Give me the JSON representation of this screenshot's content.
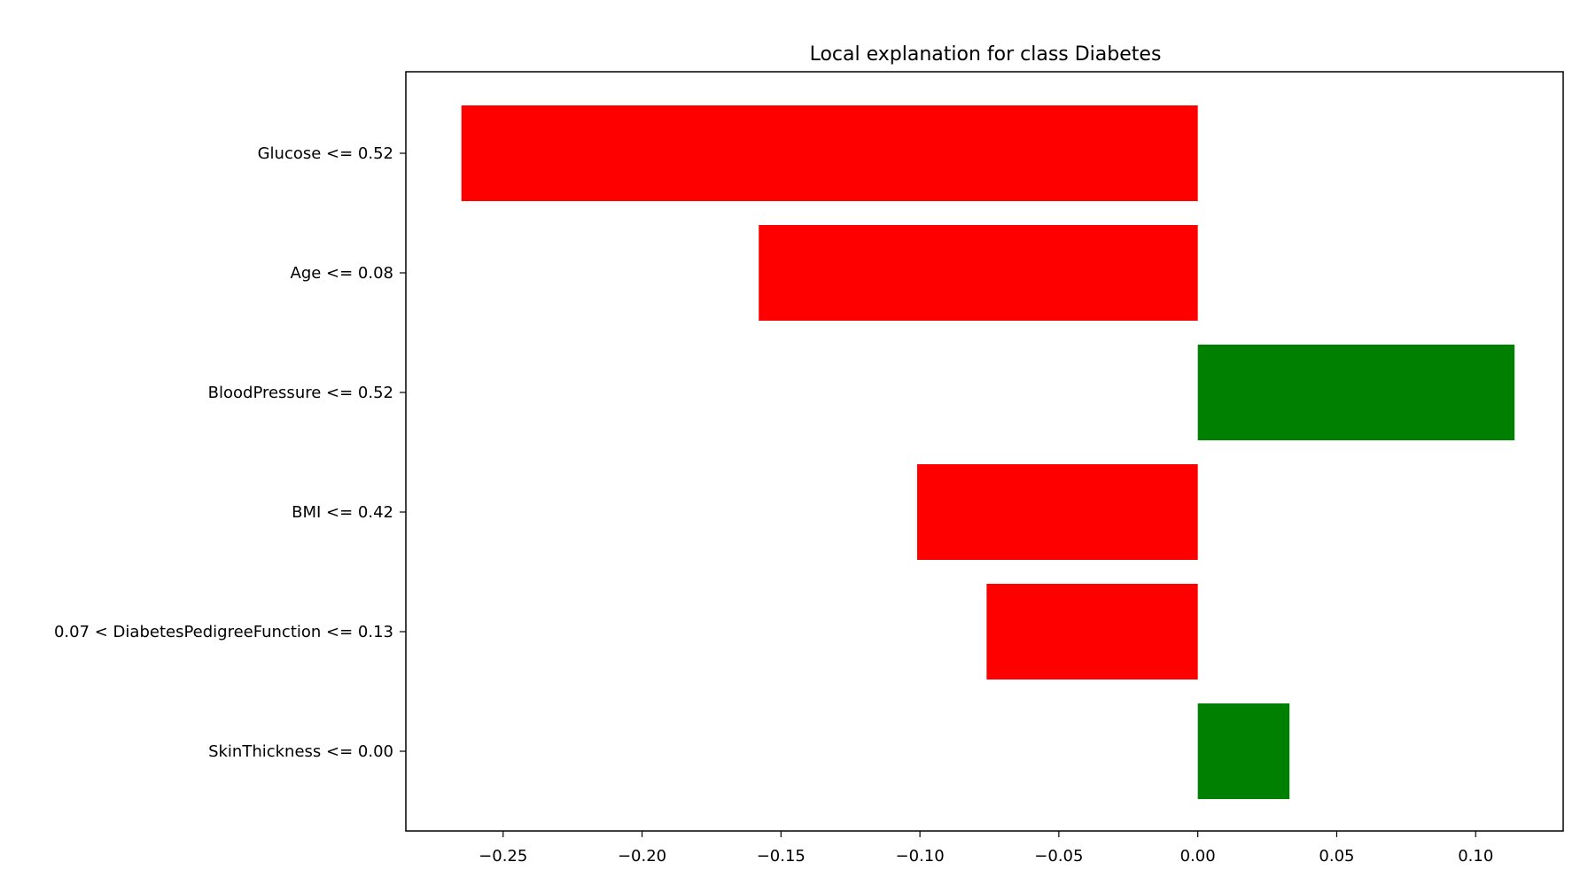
{
  "chart_data": {
    "type": "bar",
    "orientation": "horizontal",
    "title": "Local explanation for class Diabetes",
    "xlabel": "",
    "ylabel": "",
    "categories": [
      "Glucose <= 0.52",
      "Age <= 0.08",
      "BloodPressure <= 0.52",
      "BMI <= 0.42",
      "0.07 < DiabetesPedigreeFunction <= 0.13",
      "SkinThickness <= 0.00"
    ],
    "values": [
      -0.265,
      -0.158,
      0.114,
      -0.101,
      -0.076,
      0.033
    ],
    "xlim": [
      -0.285,
      0.1315
    ],
    "xticks": [
      -0.25,
      -0.2,
      -0.15,
      -0.1,
      -0.05,
      0.0,
      0.05,
      0.1
    ],
    "xtick_labels": [
      "−0.25",
      "−0.20",
      "−0.15",
      "−0.10",
      "−0.05",
      "0.00",
      "0.05",
      "0.10"
    ],
    "grid": false,
    "colors": {
      "positive": "#008000",
      "negative": "#ff0000",
      "frame": "#000000"
    }
  }
}
